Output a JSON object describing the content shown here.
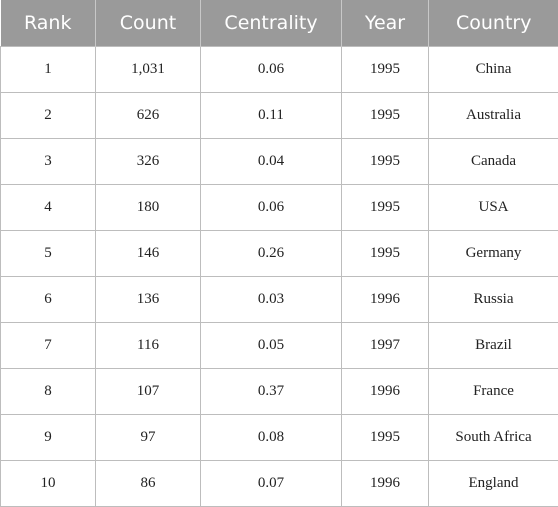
{
  "table": {
    "headers": [
      "Rank",
      "Count",
      "Centrality",
      "Year",
      "Country"
    ],
    "rows": [
      [
        "1",
        "1,031",
        "0.06",
        "1995",
        "China"
      ],
      [
        "2",
        "626",
        "0.11",
        "1995",
        "Australia"
      ],
      [
        "3",
        "326",
        "0.04",
        "1995",
        "Canada"
      ],
      [
        "4",
        "180",
        "0.06",
        "1995",
        "USA"
      ],
      [
        "5",
        "146",
        "0.26",
        "1995",
        "Germany"
      ],
      [
        "6",
        "136",
        "0.03",
        "1996",
        "Russia"
      ],
      [
        "7",
        "116",
        "0.05",
        "1997",
        "Brazil"
      ],
      [
        "8",
        "107",
        "0.37",
        "1996",
        "France"
      ],
      [
        "9",
        "97",
        "0.08",
        "1995",
        "South Africa"
      ],
      [
        "10",
        "86",
        "0.07",
        "1996",
        "England"
      ]
    ]
  }
}
